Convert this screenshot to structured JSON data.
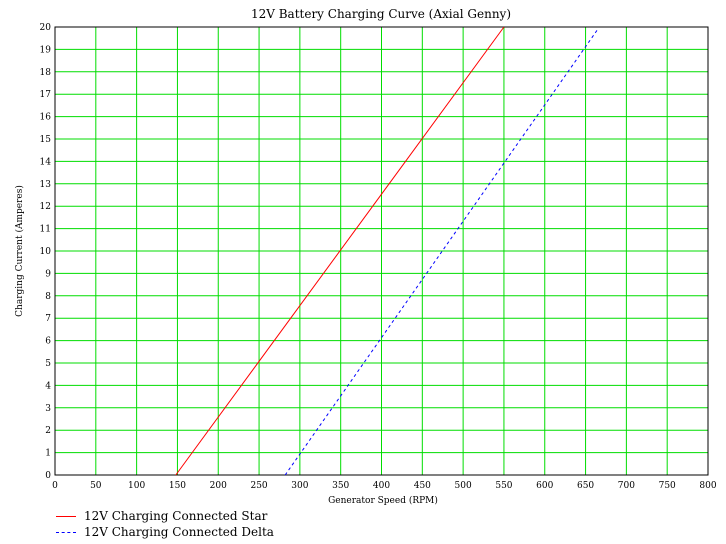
{
  "chart_data": {
    "type": "line",
    "title": "12V Battery Charging Curve (Axial Genny)",
    "xlabel": "Generator Speed (RPM)",
    "ylabel": "Charging Current (Amperes)",
    "xlim": [
      0,
      800
    ],
    "ylim": [
      0,
      20
    ],
    "x_ticks": [
      0,
      50,
      100,
      150,
      200,
      250,
      300,
      350,
      400,
      450,
      500,
      550,
      600,
      650,
      700,
      750,
      800
    ],
    "y_ticks": [
      0,
      1,
      2,
      3,
      4,
      5,
      6,
      7,
      8,
      9,
      10,
      11,
      12,
      13,
      14,
      15,
      16,
      17,
      18,
      19,
      20
    ],
    "grid": true,
    "grid_color": "#00dd00",
    "legend_position": "bottom-left",
    "series": [
      {
        "name": "12V Charging Connected  Star",
        "color": "#ff0000",
        "style": "solid",
        "x": [
          148,
          550
        ],
        "y": [
          0,
          20
        ]
      },
      {
        "name": "12V Charging Connected Delta",
        "color": "#0000ff",
        "style": "dashed",
        "x": [
          282,
          665
        ],
        "y": [
          0,
          19.9
        ]
      }
    ]
  }
}
